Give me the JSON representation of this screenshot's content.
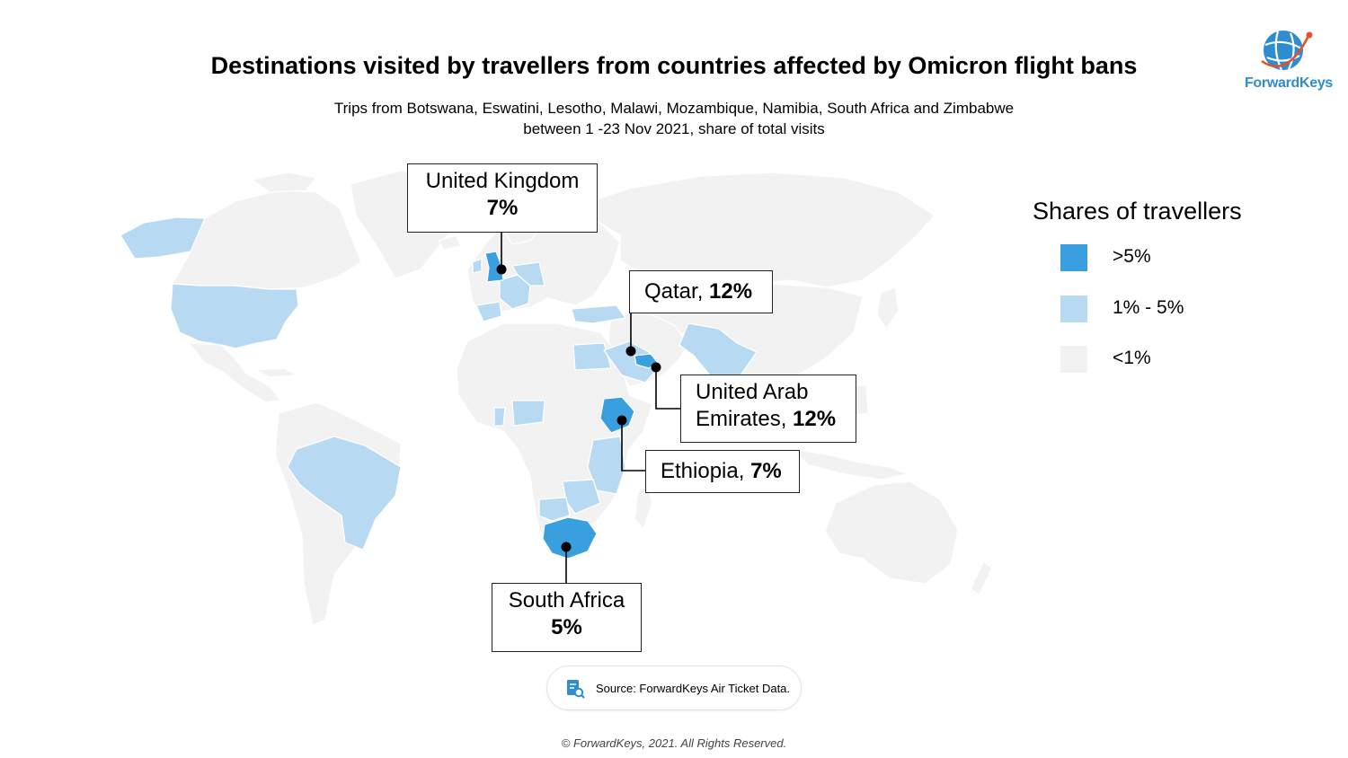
{
  "title": "Destinations visited by travellers from countries affected by Omicron flight bans",
  "subtitle_line1": "Trips from Botswana, Eswatini, Lesotho, Malawi, Mozambique, Namibia, South Africa and Zimbabwe",
  "subtitle_line2": "between 1 -23 Nov 2021, share of total visits",
  "logo_text": "ForwardKeys",
  "colors": {
    "high": "#3a9fdf",
    "mid": "#b7daf2",
    "low": "#f2f2f2",
    "ocean": "#ffffff"
  },
  "callouts": {
    "uk": {
      "name": "United Kingdom",
      "value": "7%"
    },
    "qatar": {
      "name": "Qatar, ",
      "value": "12%"
    },
    "uae": {
      "name1": "United Arab",
      "name2": "Emirates, ",
      "value": "12%"
    },
    "ethiopia": {
      "name": "Ethiopia, ",
      "value": "7%"
    },
    "south_africa": {
      "name": "South Africa",
      "value": "5%"
    }
  },
  "legend": {
    "title": "Shares of travellers",
    "items": [
      {
        "label": ">5%",
        "color": "#3a9fdf"
      },
      {
        "label": "1% - 5%",
        "color": "#b7daf2"
      },
      {
        "label": "<1%",
        "color": "#f2f2f2"
      }
    ]
  },
  "source": "Source: ForwardKeys Air Ticket Data.",
  "copyright": "© ForwardKeys, 2021. All Rights Reserved."
}
